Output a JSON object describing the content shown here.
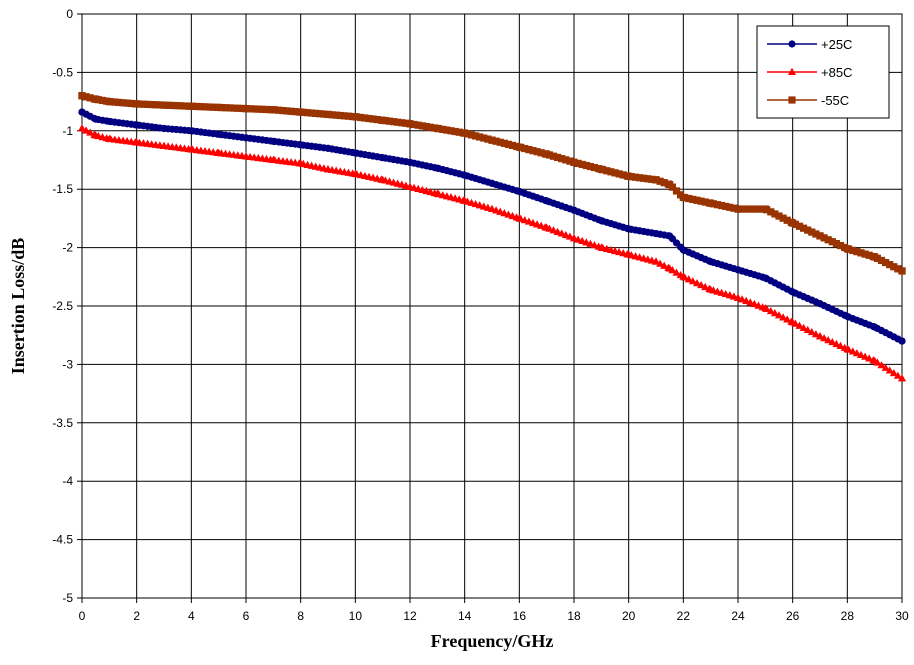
{
  "chart_data": {
    "type": "line",
    "title": "",
    "xlabel": "Frequency/GHz",
    "ylabel": "Insertion Loss/dB",
    "xlim": [
      0,
      30
    ],
    "ylim": [
      -5,
      0
    ],
    "x_ticks": [
      0,
      2,
      4,
      6,
      8,
      10,
      12,
      14,
      16,
      18,
      20,
      22,
      24,
      26,
      28,
      30
    ],
    "y_ticks": [
      0,
      -0.5,
      -1,
      -1.5,
      -2,
      -2.5,
      -3,
      -3.5,
      -4,
      -4.5,
      -5
    ],
    "grid": true,
    "legend_position": "top-right",
    "series": [
      {
        "name": "+25C",
        "color": "#000080",
        "marker": "circle",
        "points": [
          [
            0,
            -0.84
          ],
          [
            0.5,
            -0.9
          ],
          [
            1,
            -0.92
          ],
          [
            2,
            -0.95
          ],
          [
            3,
            -0.98
          ],
          [
            4,
            -1.0
          ],
          [
            5,
            -1.03
          ],
          [
            6,
            -1.06
          ],
          [
            7,
            -1.09
          ],
          [
            8,
            -1.12
          ],
          [
            9,
            -1.15
          ],
          [
            10,
            -1.19
          ],
          [
            11,
            -1.23
          ],
          [
            12,
            -1.27
          ],
          [
            13,
            -1.32
          ],
          [
            14,
            -1.38
          ],
          [
            15,
            -1.45
          ],
          [
            16,
            -1.52
          ],
          [
            17,
            -1.6
          ],
          [
            18,
            -1.68
          ],
          [
            19,
            -1.77
          ],
          [
            20,
            -1.84
          ],
          [
            21,
            -1.88
          ],
          [
            21.5,
            -1.9
          ],
          [
            22,
            -2.02
          ],
          [
            23,
            -2.12
          ],
          [
            24,
            -2.19
          ],
          [
            25,
            -2.26
          ],
          [
            26,
            -2.38
          ],
          [
            27,
            -2.48
          ],
          [
            28,
            -2.59
          ],
          [
            29,
            -2.68
          ],
          [
            30,
            -2.8
          ]
        ]
      },
      {
        "name": "+85C",
        "color": "#ff0000",
        "marker": "triangle",
        "points": [
          [
            0,
            -0.98
          ],
          [
            0.5,
            -1.04
          ],
          [
            1,
            -1.07
          ],
          [
            2,
            -1.1
          ],
          [
            3,
            -1.13
          ],
          [
            4,
            -1.16
          ],
          [
            5,
            -1.19
          ],
          [
            6,
            -1.22
          ],
          [
            7,
            -1.25
          ],
          [
            8,
            -1.28
          ],
          [
            9,
            -1.33
          ],
          [
            10,
            -1.37
          ],
          [
            11,
            -1.42
          ],
          [
            12,
            -1.48
          ],
          [
            13,
            -1.54
          ],
          [
            14,
            -1.6
          ],
          [
            15,
            -1.67
          ],
          [
            16,
            -1.75
          ],
          [
            17,
            -1.83
          ],
          [
            18,
            -1.92
          ],
          [
            19,
            -2.0
          ],
          [
            20,
            -2.06
          ],
          [
            21,
            -2.12
          ],
          [
            21.5,
            -2.18
          ],
          [
            22,
            -2.25
          ],
          [
            23,
            -2.36
          ],
          [
            24,
            -2.43
          ],
          [
            25,
            -2.52
          ],
          [
            26,
            -2.64
          ],
          [
            27,
            -2.76
          ],
          [
            28,
            -2.87
          ],
          [
            29,
            -2.97
          ],
          [
            30,
            -3.12
          ]
        ]
      },
      {
        "name": "-55C",
        "color": "#993300",
        "marker": "square",
        "points": [
          [
            0,
            -0.7
          ],
          [
            0.5,
            -0.73
          ],
          [
            1,
            -0.75
          ],
          [
            2,
            -0.77
          ],
          [
            3,
            -0.78
          ],
          [
            4,
            -0.79
          ],
          [
            5,
            -0.8
          ],
          [
            6,
            -0.81
          ],
          [
            7,
            -0.82
          ],
          [
            8,
            -0.84
          ],
          [
            9,
            -0.86
          ],
          [
            10,
            -0.88
          ],
          [
            11,
            -0.91
          ],
          [
            12,
            -0.94
          ],
          [
            13,
            -0.98
          ],
          [
            14,
            -1.02
          ],
          [
            15,
            -1.08
          ],
          [
            16,
            -1.14
          ],
          [
            17,
            -1.2
          ],
          [
            18,
            -1.27
          ],
          [
            19,
            -1.33
          ],
          [
            20,
            -1.39
          ],
          [
            21,
            -1.42
          ],
          [
            21.5,
            -1.46
          ],
          [
            22,
            -1.57
          ],
          [
            23,
            -1.62
          ],
          [
            24,
            -1.67
          ],
          [
            25,
            -1.67
          ],
          [
            26,
            -1.79
          ],
          [
            27,
            -1.9
          ],
          [
            28,
            -2.01
          ],
          [
            29,
            -2.08
          ],
          [
            30,
            -2.2
          ]
        ]
      }
    ]
  }
}
